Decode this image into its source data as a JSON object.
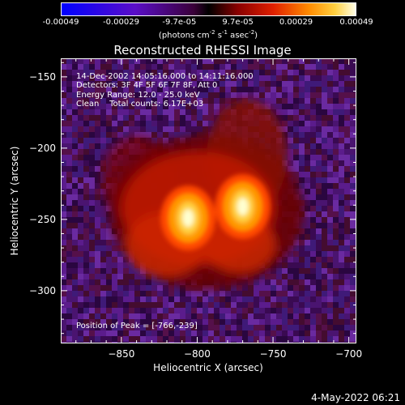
{
  "colorbar": {
    "tick_labels": [
      "-0.00049",
      "-0.00029",
      "-9.7e-05",
      "9.7e-05",
      "0.00029",
      "0.00049"
    ],
    "tick_values": [
      -0.00049,
      -0.00029,
      -9.7e-05,
      9.7e-05,
      0.00029,
      0.00049
    ],
    "range": [
      -0.00049,
      0.00049
    ],
    "units_main": "(photons cm",
    "units_exp1": "-2",
    "units_s": " s",
    "units_exp2": "-1",
    "units_asec": " asec",
    "units_exp3": "-2",
    "units_close": ")"
  },
  "plot": {
    "title": "Reconstructed RHESSI Image",
    "xlabel": "Heliocentric X (arcsec)",
    "ylabel": "Heliocentric Y (arcsec)",
    "xlim": [
      -890,
      -695
    ],
    "ylim": [
      -337,
      -137
    ],
    "x_ticks": [
      -850,
      -800,
      -750,
      -700
    ],
    "x_tick_labels": [
      "−850",
      "−800",
      "−750",
      "−700"
    ],
    "y_ticks": [
      -150,
      -200,
      -250,
      -300
    ],
    "y_tick_labels": [
      "−150",
      "−200",
      "−250",
      "−300"
    ]
  },
  "annotations": {
    "time_range": "14-Dec-2002 14:05:16.000 to 14:11:16.000",
    "detectors": "Detectors: 3F 4F 5F 6F 7F 8F, Att 0",
    "energy": "Energy Range: 12.0 - 25.0 keV",
    "clean": "Clean    Total counts: 6.17E+03",
    "peak": "Position of Peak = [-766,-239]"
  },
  "peaks": [
    {
      "x": -806,
      "y": -249,
      "intensity": 1.0
    },
    {
      "x": -770,
      "y": -241,
      "intensity": 1.0
    }
  ],
  "footer": {
    "date": "4-May-2022 06:21"
  }
}
